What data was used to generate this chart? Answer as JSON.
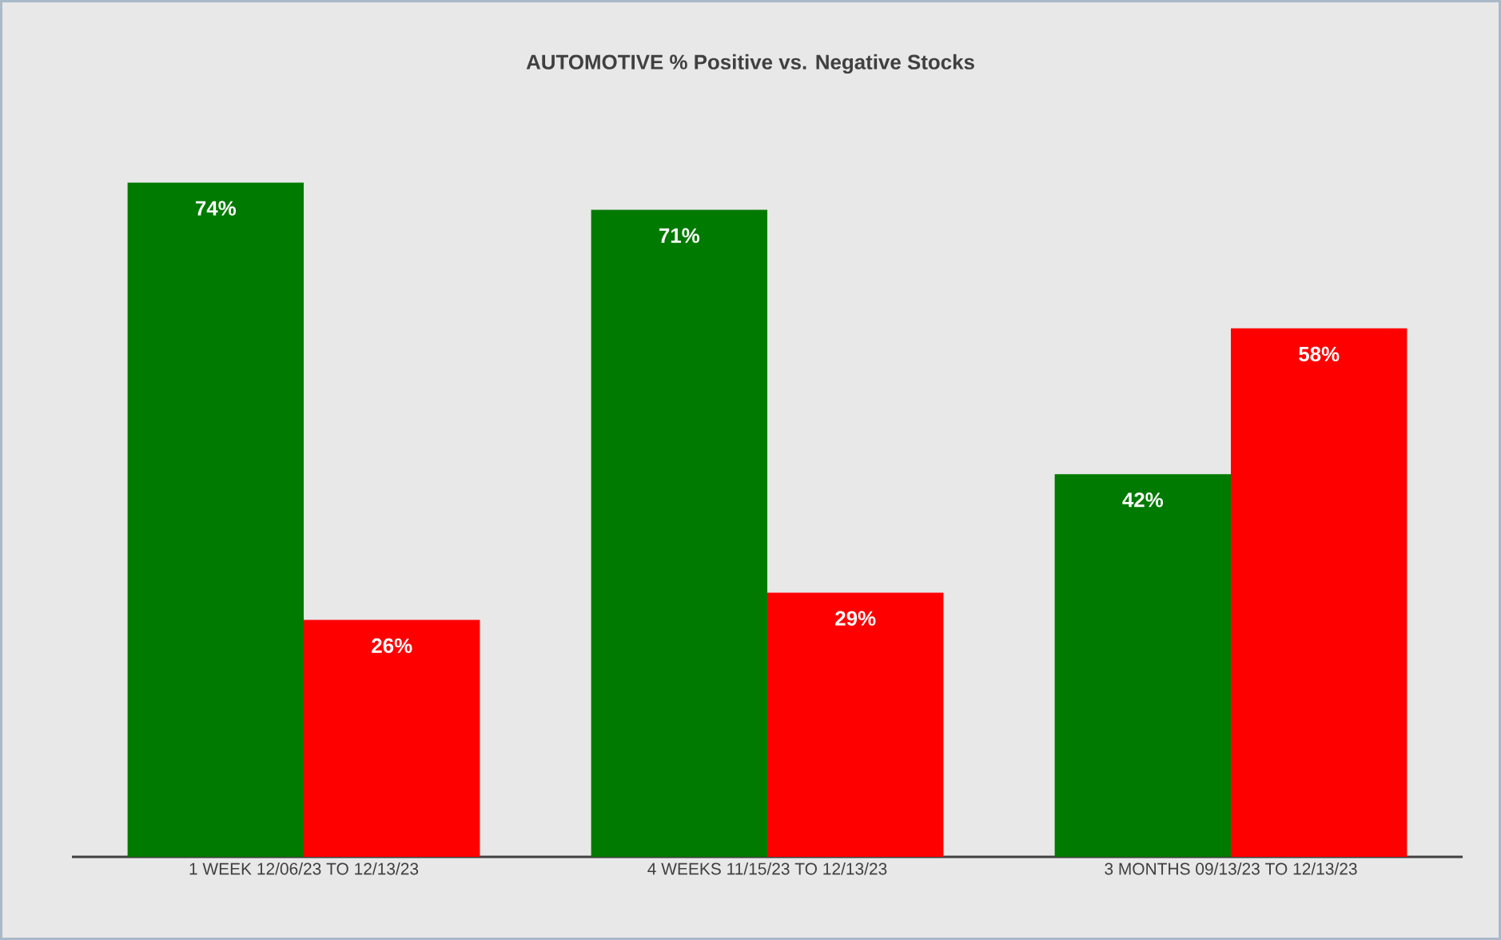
{
  "chart_data": {
    "type": "bar",
    "title": "AUTOMOTIVE % Positive vs. Negative Stocks",
    "categories": [
      "1 WEEK 12/06/23 TO 12/13/23",
      "4 WEEKS 11/15/23 TO 12/13/23",
      "3 MONTHS 09/13/23 TO 12/13/23"
    ],
    "series": [
      {
        "color": "#007a00",
        "values": [
          74,
          71,
          42
        ],
        "value_labels": [
          "74%",
          "71%",
          "42%"
        ]
      },
      {
        "color": "#ff0000",
        "values": [
          26,
          29,
          58
        ],
        "value_labels": [
          "26%",
          "29%",
          "58%"
        ]
      }
    ],
    "tick_labels": "x"
  }
}
